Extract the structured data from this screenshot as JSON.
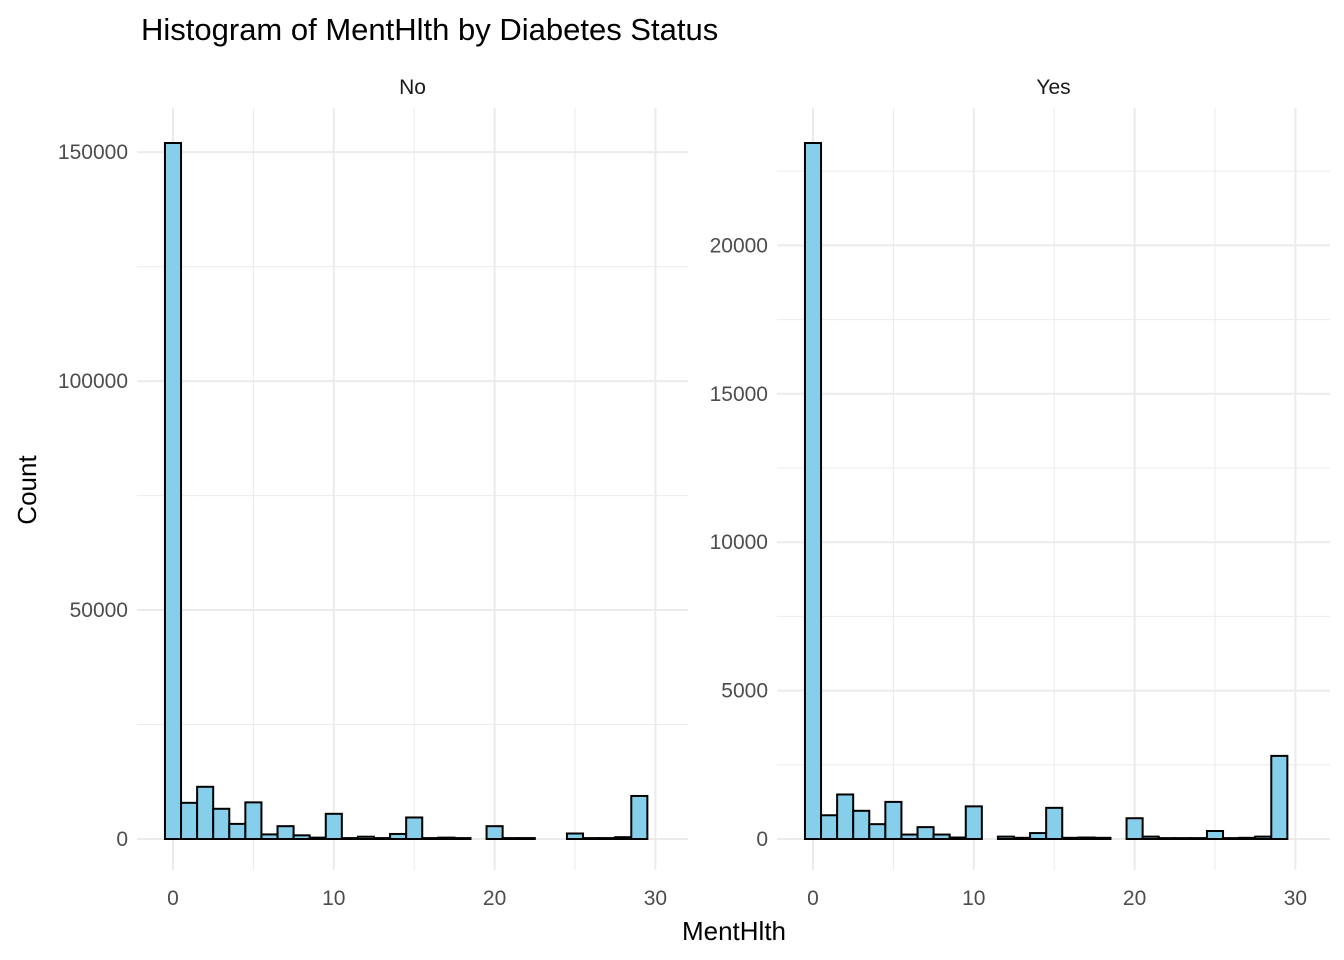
{
  "chart_data": {
    "type": "bar",
    "title": "Histogram of MentHlth by Diabetes Status",
    "xlabel": "MentHlth",
    "ylabel": "Count",
    "bar_color": "#87CEEB",
    "bar_outline": "#000000",
    "bin_width": 1,
    "bins": 30,
    "grid": true,
    "facets": [
      {
        "label": "No",
        "x_ticks": [
          0,
          10,
          20,
          30
        ],
        "y_ticks": [
          0,
          50000,
          100000,
          150000
        ],
        "ylim": [
          0,
          152000
        ],
        "bin_start": [
          0,
          1,
          2,
          3,
          4,
          5,
          6,
          7,
          8,
          9,
          10,
          11,
          12,
          13,
          14,
          15,
          16,
          17,
          18,
          19,
          20,
          21,
          22,
          23,
          24,
          25,
          26,
          27,
          28,
          29
        ],
        "values": [
          152000,
          7900,
          11400,
          6600,
          3300,
          8000,
          1000,
          2800,
          800,
          300,
          5500,
          200,
          500,
          200,
          1100,
          4700,
          200,
          300,
          200,
          0,
          2800,
          200,
          200,
          0,
          0,
          1200,
          200,
          200,
          400,
          9400
        ]
      },
      {
        "label": "Yes",
        "x_ticks": [
          0,
          10,
          20,
          30
        ],
        "y_ticks": [
          0,
          5000,
          10000,
          15000,
          20000
        ],
        "ylim": [
          0,
          23450
        ],
        "bin_start": [
          0,
          1,
          2,
          3,
          4,
          5,
          6,
          7,
          8,
          9,
          10,
          11,
          12,
          13,
          14,
          15,
          16,
          17,
          18,
          19,
          20,
          21,
          22,
          23,
          24,
          25,
          26,
          27,
          28,
          29
        ],
        "values": [
          23450,
          800,
          1500,
          950,
          500,
          1250,
          150,
          400,
          150,
          50,
          1100,
          0,
          80,
          40,
          200,
          1050,
          40,
          50,
          40,
          0,
          700,
          80,
          30,
          30,
          30,
          270,
          30,
          40,
          80,
          2800
        ]
      }
    ]
  }
}
